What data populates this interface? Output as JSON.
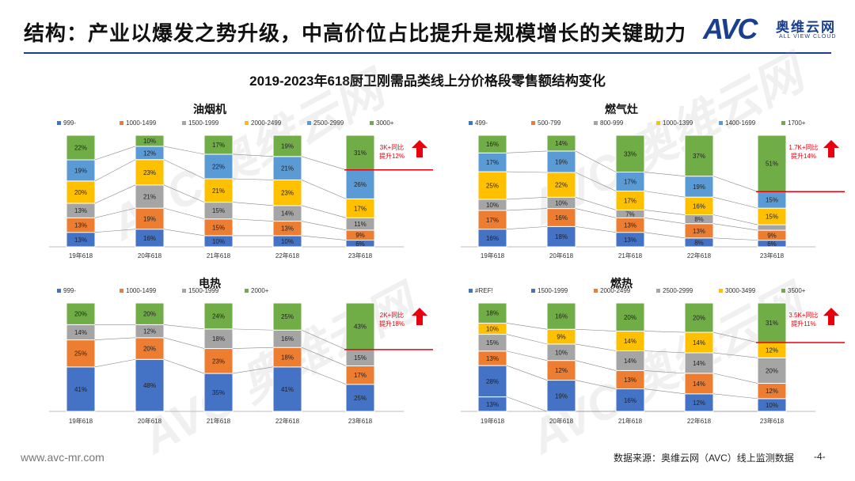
{
  "header": {
    "title": "结构：产业以爆发之势升级，中高价位占比提升是规模增长的关键助力",
    "logo_mark": "AVC",
    "logo_cn": "奥维云网",
    "logo_en": "ALL VIEW CLOUD"
  },
  "main_title": "2019-2023年618厨卫刚需品类线上分价格段零售额结构变化",
  "watermark": "AVC 奥维云网",
  "footer": {
    "website": "www.avc-mr.com",
    "source": "数据来源：奥维云网（AVC）线上监测数据",
    "page": "-4-"
  },
  "colors": {
    "brand": "#1b3f8f",
    "arrow": "#e8000e",
    "s1": "#4472c4",
    "s2": "#ed7d31",
    "s3": "#a5a5a5",
    "s4": "#ffc000",
    "s5": "#5b9bd5",
    "s6": "#70ad47"
  },
  "chart_data": [
    {
      "type": "bar",
      "stacked": true,
      "title": "油烟机",
      "categories": [
        "19年618",
        "20年618",
        "21年618",
        "22年618",
        "23年618"
      ],
      "series": [
        {
          "name": "999-",
          "color": "#4472c4",
          "values": [
            13,
            16,
            10,
            10,
            6
          ]
        },
        {
          "name": "1000-1499",
          "color": "#ed7d31",
          "values": [
            13,
            19,
            15,
            13,
            9
          ]
        },
        {
          "name": "1500-1999",
          "color": "#a5a5a5",
          "values": [
            13,
            21,
            15,
            14,
            11
          ]
        },
        {
          "name": "2000-2499",
          "color": "#ffc000",
          "values": [
            20,
            23,
            21,
            23,
            17
          ]
        },
        {
          "name": "2500-2999",
          "color": "#5b9bd5",
          "values": [
            19,
            12,
            22,
            21,
            26
          ]
        },
        {
          "name": "3000+",
          "color": "#70ad47",
          "values": [
            22,
            10,
            17,
            19,
            31
          ]
        }
      ],
      "annotation": {
        "line1": "3K+同比",
        "line2": "提升12%"
      },
      "legend_position": "top"
    },
    {
      "type": "bar",
      "stacked": true,
      "title": "燃气灶",
      "categories": [
        "19年618",
        "20年618",
        "21年618",
        "22年618",
        "23年618"
      ],
      "series": [
        {
          "name": "499-",
          "color": "#4472c4",
          "values": [
            16,
            18,
            13,
            8,
            6
          ]
        },
        {
          "name": "500-799",
          "color": "#ed7d31",
          "values": [
            17,
            16,
            13,
            13,
            9
          ]
        },
        {
          "name": "800-999",
          "color": "#a5a5a5",
          "values": [
            10,
            10,
            7,
            8,
            5
          ]
        },
        {
          "name": "1000-1399",
          "color": "#ffc000",
          "values": [
            25,
            22,
            17,
            16,
            15
          ]
        },
        {
          "name": "1400-1699",
          "color": "#5b9bd5",
          "values": [
            17,
            19,
            17,
            19,
            15
          ]
        },
        {
          "name": "1700+",
          "color": "#70ad47",
          "values": [
            16,
            14,
            33,
            37,
            51
          ]
        }
      ],
      "annotation": {
        "line1": "1.7K+同比",
        "line2": "提升14%"
      },
      "legend_position": "top"
    },
    {
      "type": "bar",
      "stacked": true,
      "title": "电热",
      "categories": [
        "19年618",
        "20年618",
        "21年618",
        "22年618",
        "23年618"
      ],
      "series": [
        {
          "name": "999-",
          "color": "#4472c4",
          "values": [
            41,
            48,
            35,
            41,
            25
          ]
        },
        {
          "name": "1000-1499",
          "color": "#ed7d31",
          "values": [
            25,
            20,
            23,
            18,
            17
          ]
        },
        {
          "name": "1500-1999",
          "color": "#a5a5a5",
          "values": [
            14,
            12,
            18,
            16,
            15
          ]
        },
        {
          "name": "2000+",
          "color": "#70ad47",
          "values": [
            20,
            20,
            24,
            25,
            43
          ]
        }
      ],
      "annotation": {
        "line1": "2K+同比",
        "line2": "提升18%"
      },
      "legend_position": "top"
    },
    {
      "type": "bar",
      "stacked": true,
      "title": "燃热",
      "categories": [
        "19年618",
        "20年618",
        "21年618",
        "22年618",
        "23年618"
      ],
      "series": [
        {
          "name": "#REF!",
          "color": "#4472c4",
          "values": [
            13,
            0,
            0,
            0,
            0
          ]
        },
        {
          "name": "1500-1999",
          "color": "#4472c4",
          "values": [
            28,
            19,
            16,
            12,
            10
          ]
        },
        {
          "name": "2000-2499",
          "color": "#ed7d31",
          "values": [
            13,
            12,
            13,
            14,
            12
          ]
        },
        {
          "name": "2500-2999",
          "color": "#a5a5a5",
          "values": [
            15,
            10,
            14,
            14,
            20
          ]
        },
        {
          "name": "3000-3499",
          "color": "#ffc000",
          "values": [
            10,
            9,
            14,
            14,
            12
          ]
        },
        {
          "name": "3500+",
          "color": "#70ad47",
          "values": [
            18,
            16,
            20,
            20,
            31
          ]
        }
      ],
      "annotation": {
        "line1": "3.5K+同比",
        "line2": "提升11%"
      },
      "legend_position": "top"
    }
  ]
}
